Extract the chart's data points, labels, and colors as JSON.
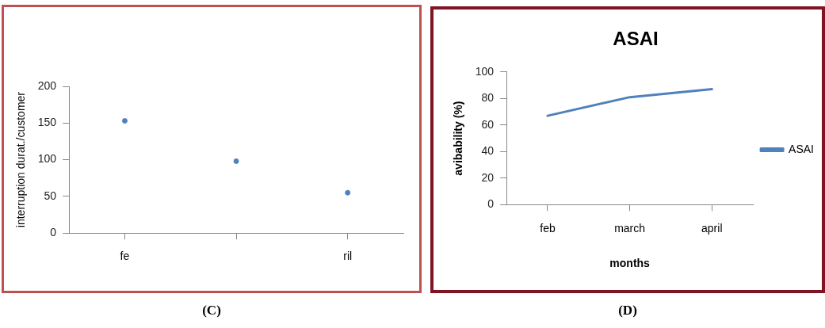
{
  "chart_data": [
    {
      "type": "scatter",
      "ylabel": "interruption durat./customer",
      "categories": [
        "fe",
        null,
        "ril"
      ],
      "values": [
        153,
        98,
        55
      ],
      "color": "#4f81bd",
      "marker": "circle",
      "ylim": [
        0,
        200
      ],
      "yticks": [
        0,
        50,
        100,
        150,
        200
      ],
      "annotations": [
        "(C)"
      ]
    },
    {
      "type": "line",
      "title": "ASAI",
      "xlabel": "months",
      "ylabel": "avibability (%)",
      "categories": [
        "feb",
        "march",
        "april"
      ],
      "series": [
        {
          "name": "ASAI",
          "color": "#4f81bd",
          "values": [
            67,
            81,
            87
          ]
        }
      ],
      "ylim": [
        0,
        100
      ],
      "yticks": [
        0,
        20,
        40,
        60,
        80,
        100
      ],
      "legend": "right",
      "line_style": "solid",
      "annotations": [
        "(D)"
      ]
    }
  ]
}
